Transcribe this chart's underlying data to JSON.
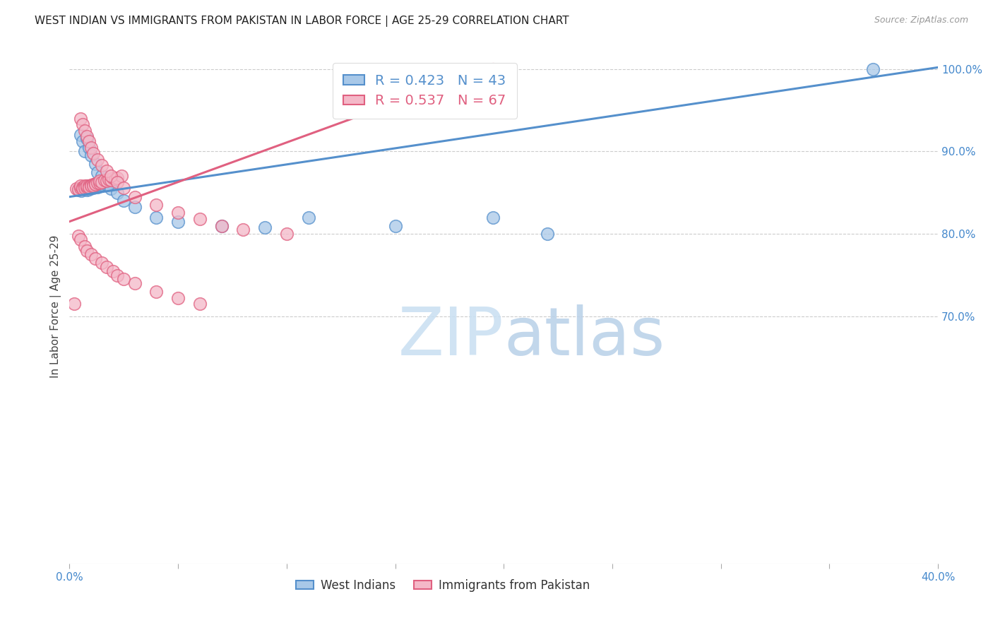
{
  "title": "WEST INDIAN VS IMMIGRANTS FROM PAKISTAN IN LABOR FORCE | AGE 25-29 CORRELATION CHART",
  "source": "Source: ZipAtlas.com",
  "ylabel": "In Labor Force | Age 25-29",
  "legend_blue_label": "West Indians",
  "legend_pink_label": "Immigrants from Pakistan",
  "blue_R": 0.423,
  "blue_N": 43,
  "pink_R": 0.537,
  "pink_N": 67,
  "blue_color": "#a8c8e8",
  "pink_color": "#f4b8c8",
  "blue_edge_color": "#5590cc",
  "pink_edge_color": "#e06080",
  "blue_line_color": "#5590cc",
  "pink_line_color": "#e06080",
  "watermark_zip": "ZIP",
  "watermark_atlas": "atlas",
  "xlim": [
    0.0,
    0.4
  ],
  "ylim": [
    0.4,
    1.025
  ],
  "yticks_right": [
    0.7,
    0.8,
    0.9,
    1.0
  ],
  "ytick_labels_right": [
    "70.0%",
    "80.0%",
    "90.0%",
    "100.0%"
  ],
  "xtick_positions": [
    0.0,
    0.05,
    0.1,
    0.15,
    0.2,
    0.25,
    0.3,
    0.35,
    0.4
  ],
  "blue_trend_x": [
    0.0,
    0.4
  ],
  "blue_trend_y": [
    0.845,
    1.002
  ],
  "pink_trend_x": [
    0.0,
    0.195
  ],
  "pink_trend_y": [
    0.815,
    1.002
  ],
  "grid_color": "#cccccc",
  "title_fontsize": 11,
  "axis_label_fontsize": 11,
  "tick_label_fontsize": 11,
  "tick_color": "#4488cc",
  "background_color": "#ffffff",
  "blue_x": [
    0.004,
    0.005,
    0.0055,
    0.006,
    0.006,
    0.007,
    0.007,
    0.0075,
    0.008,
    0.009,
    0.009,
    0.01,
    0.01,
    0.011,
    0.012,
    0.013,
    0.014,
    0.015,
    0.017,
    0.02,
    0.005,
    0.006,
    0.007,
    0.008,
    0.009,
    0.01,
    0.012,
    0.013,
    0.015,
    0.017,
    0.019,
    0.022,
    0.025,
    0.03,
    0.04,
    0.05,
    0.07,
    0.09,
    0.11,
    0.15,
    0.195,
    0.22,
    0.37
  ],
  "blue_y": [
    0.853,
    0.854,
    0.852,
    0.855,
    0.856,
    0.854,
    0.856,
    0.855,
    0.853,
    0.855,
    0.854,
    0.856,
    0.857,
    0.856,
    0.858,
    0.857,
    0.859,
    0.86,
    0.862,
    0.862,
    0.92,
    0.912,
    0.9,
    0.916,
    0.905,
    0.895,
    0.885,
    0.875,
    0.87,
    0.86,
    0.855,
    0.85,
    0.84,
    0.833,
    0.82,
    0.815,
    0.81,
    0.808,
    0.82,
    0.81,
    0.82,
    0.8,
    1.0
  ],
  "pink_x": [
    0.003,
    0.004,
    0.005,
    0.005,
    0.006,
    0.006,
    0.007,
    0.007,
    0.008,
    0.008,
    0.009,
    0.009,
    0.01,
    0.01,
    0.011,
    0.011,
    0.012,
    0.012,
    0.013,
    0.014,
    0.014,
    0.015,
    0.016,
    0.017,
    0.018,
    0.019,
    0.02,
    0.021,
    0.022,
    0.024,
    0.005,
    0.006,
    0.007,
    0.008,
    0.009,
    0.01,
    0.011,
    0.013,
    0.015,
    0.017,
    0.019,
    0.022,
    0.025,
    0.03,
    0.04,
    0.05,
    0.06,
    0.07,
    0.08,
    0.1,
    0.004,
    0.005,
    0.007,
    0.008,
    0.01,
    0.012,
    0.015,
    0.017,
    0.02,
    0.022,
    0.025,
    0.03,
    0.04,
    0.05,
    0.06,
    0.195,
    0.002
  ],
  "pink_y": [
    0.855,
    0.854,
    0.856,
    0.858,
    0.857,
    0.855,
    0.858,
    0.856,
    0.857,
    0.858,
    0.858,
    0.857,
    0.859,
    0.858,
    0.86,
    0.858,
    0.861,
    0.86,
    0.862,
    0.862,
    0.864,
    0.863,
    0.865,
    0.864,
    0.866,
    0.865,
    0.868,
    0.867,
    0.868,
    0.87,
    0.94,
    0.933,
    0.925,
    0.918,
    0.912,
    0.905,
    0.898,
    0.89,
    0.883,
    0.876,
    0.87,
    0.863,
    0.856,
    0.845,
    0.835,
    0.826,
    0.818,
    0.81,
    0.805,
    0.8,
    0.798,
    0.793,
    0.785,
    0.78,
    0.775,
    0.77,
    0.765,
    0.76,
    0.755,
    0.75,
    0.745,
    0.74,
    0.73,
    0.722,
    0.715,
    1.0,
    0.715
  ]
}
